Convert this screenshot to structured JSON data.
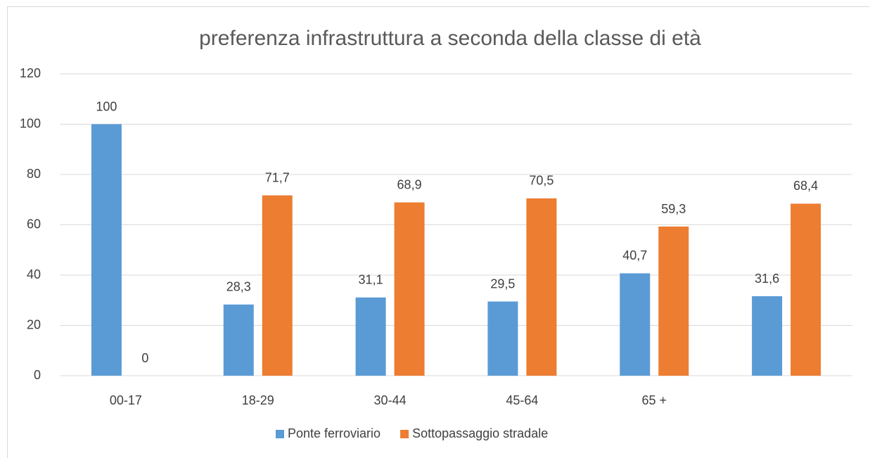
{
  "chart_data": {
    "type": "bar",
    "title": "preferenza infrastruttura a seconda della classe di età",
    "categories": [
      "00-17",
      "18-29",
      "30-44",
      "45-64",
      "65 +",
      null
    ],
    "series": [
      {
        "name": "Ponte ferroviario",
        "color": "#5b9bd5",
        "values": [
          100,
          28.3,
          31.1,
          29.5,
          40.7,
          31.6
        ],
        "value_labels": [
          "100",
          "28,3",
          "31,1",
          "29,5",
          "40,7",
          "31,6"
        ]
      },
      {
        "name": "Sottopassaggio stradale",
        "color": "#ed7d31",
        "values": [
          0,
          71.7,
          68.9,
          70.5,
          59.3,
          68.4
        ],
        "value_labels": [
          "0",
          "71,7",
          "68,9",
          "70,5",
          "59,3",
          "68,4"
        ]
      }
    ],
    "ylim": [
      0,
      120
    ],
    "yticks": [
      0,
      20,
      40,
      60,
      80,
      100,
      120
    ],
    "grid": true,
    "legend": "bottom"
  }
}
